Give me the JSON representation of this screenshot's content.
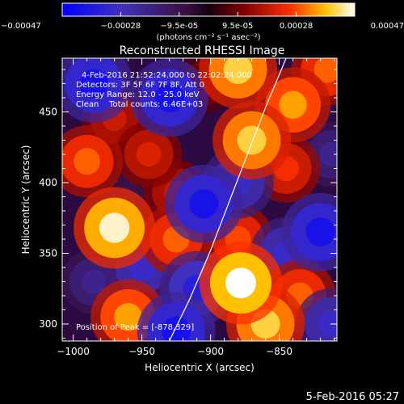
{
  "chart_data": {
    "type": "heatmap",
    "title": "Reconstructed RHESSI Image",
    "xlabel": "Heliocentric X (arcsec)",
    "ylabel": "Heliocentric Y (arcsec)",
    "xlim": [
      -1008,
      -808
    ],
    "ylim": [
      288,
      488
    ],
    "xticks": [
      -1000,
      -950,
      -900,
      -850
    ],
    "yticks": [
      300,
      350,
      400,
      450
    ],
    "colorbar": {
      "ticks": [
        "-0.00047",
        "-0.00028",
        "-9.5e-05",
        "9.5e-05",
        "0.00028",
        "0.00047"
      ],
      "unit_label": "(photons cm⁻² s⁻¹ asec⁻²)",
      "range": [
        -0.00047,
        0.00047
      ]
    },
    "annotations": {
      "time_range": "4-Feb-2016 21:52:24.000 to 22:02:24.000",
      "detectors": "Detectors: 3F 5F 6F 7F 8F, Att 0",
      "energy": "Energy Range: 12.0 - 25.0 keV",
      "clean": "Clean    Total counts: 6.46E+03",
      "peak": "Position of Peak = [-878,329]"
    },
    "limb_curve": [
      {
        "x": -930,
        "y": 288
      },
      {
        "x": -915,
        "y": 318
      },
      {
        "x": -900,
        "y": 352
      },
      {
        "x": -887,
        "y": 385
      },
      {
        "x": -874,
        "y": 418
      },
      {
        "x": -860,
        "y": 453
      },
      {
        "x": -845,
        "y": 488
      }
    ],
    "blobs": [
      {
        "x": -985,
        "y": 470,
        "v": -0.0004
      },
      {
        "x": -990,
        "y": 415,
        "v": 0.0003
      },
      {
        "x": -970,
        "y": 368,
        "v": 0.00045
      },
      {
        "x": -985,
        "y": 330,
        "v": -0.0002
      },
      {
        "x": -960,
        "y": 305,
        "v": 0.00035
      },
      {
        "x": -970,
        "y": 445,
        "v": 0.0002
      },
      {
        "x": -945,
        "y": 420,
        "v": 0.00022
      },
      {
        "x": -950,
        "y": 340,
        "v": -0.0003
      },
      {
        "x": -930,
        "y": 460,
        "v": -0.0004
      },
      {
        "x": -925,
        "y": 360,
        "v": 0.0003
      },
      {
        "x": -925,
        "y": 393,
        "v": 0.0002
      },
      {
        "x": -905,
        "y": 385,
        "v": -0.0004
      },
      {
        "x": -905,
        "y": 470,
        "v": 0.00012
      },
      {
        "x": -910,
        "y": 325,
        "v": -0.00035
      },
      {
        "x": -925,
        "y": 295,
        "v": -0.0004
      },
      {
        "x": -880,
        "y": 480,
        "v": 0.0004
      },
      {
        "x": -870,
        "y": 430,
        "v": 0.0004
      },
      {
        "x": -880,
        "y": 400,
        "v": -0.0003
      },
      {
        "x": -880,
        "y": 360,
        "v": 0.00028
      },
      {
        "x": -878,
        "y": 329,
        "v": 0.00047
      },
      {
        "x": -860,
        "y": 300,
        "v": 0.0004
      },
      {
        "x": -845,
        "y": 350,
        "v": -0.0003
      },
      {
        "x": -840,
        "y": 455,
        "v": 0.00035
      },
      {
        "x": -845,
        "y": 410,
        "v": 0.00025
      },
      {
        "x": -835,
        "y": 320,
        "v": 0.0003
      },
      {
        "x": -820,
        "y": 365,
        "v": -0.0004
      },
      {
        "x": -815,
        "y": 480,
        "v": 0.0003
      },
      {
        "x": -812,
        "y": 420,
        "v": -0.0002
      },
      {
        "x": -812,
        "y": 300,
        "v": -0.0003
      },
      {
        "x": -960,
        "y": 390,
        "v": -0.0001
      }
    ]
  },
  "footer": {
    "timestamp": "5-Feb-2016 05:27"
  }
}
